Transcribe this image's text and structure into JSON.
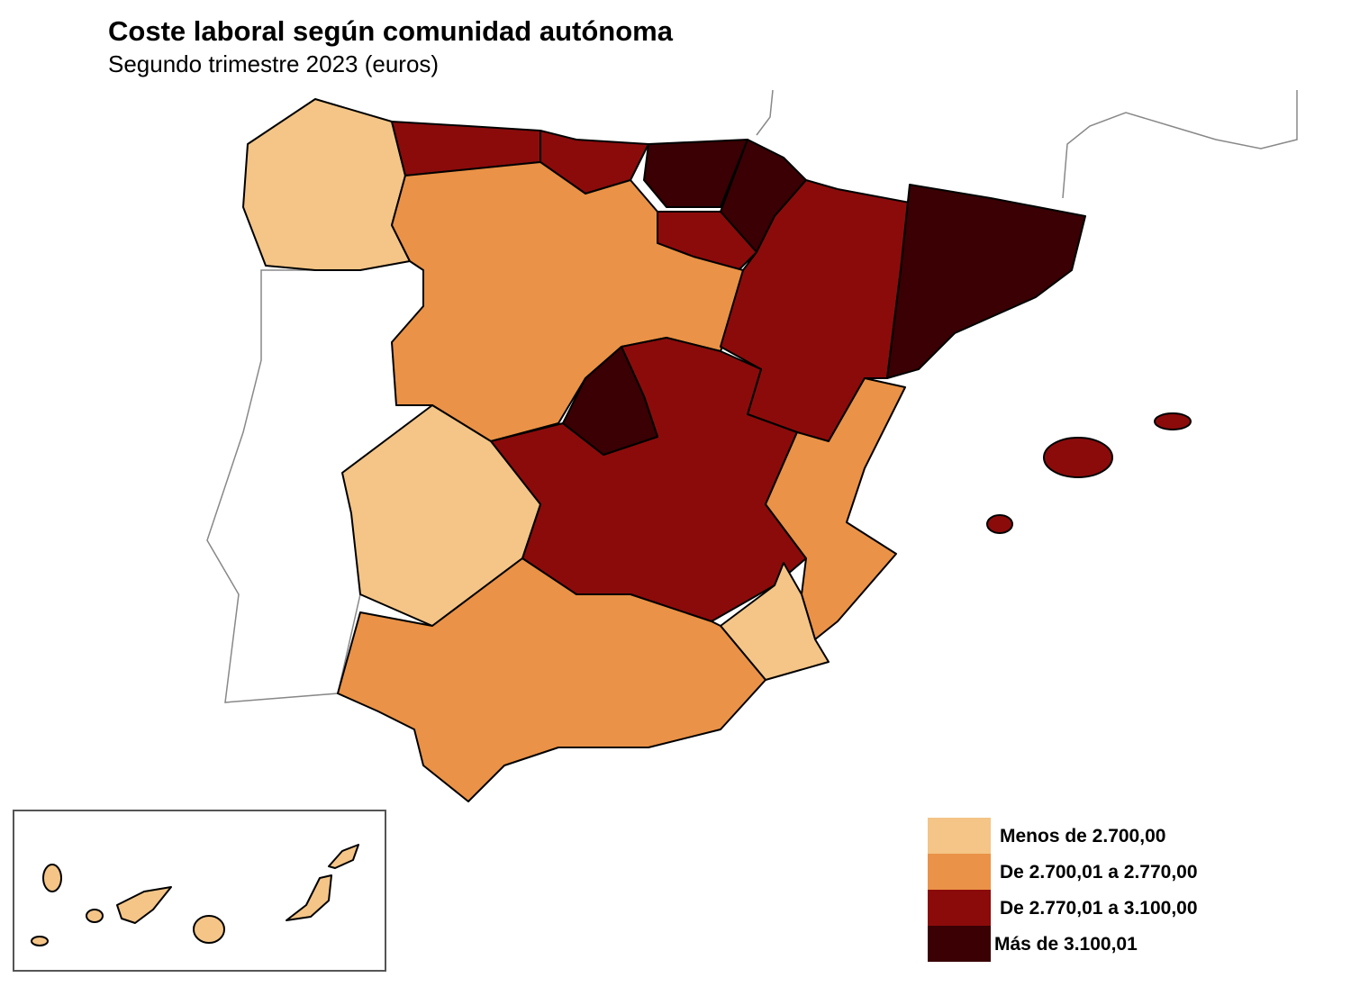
{
  "title": "Coste laboral según comunidad autónoma",
  "subtitle": "Segundo trimestre 2023 (euros)",
  "legend": [
    {
      "label": "Menos de 2.700,00",
      "color": "#f4c587"
    },
    {
      "label": "De 2.700,01 a 2.770,00",
      "color": "#ea9247"
    },
    {
      "label": "De 2.770,01 a 3.100,00",
      "color": "#8b0b0b"
    },
    {
      "label": "Más de 3.100,01",
      "color": "#3a0003"
    }
  ]
}
